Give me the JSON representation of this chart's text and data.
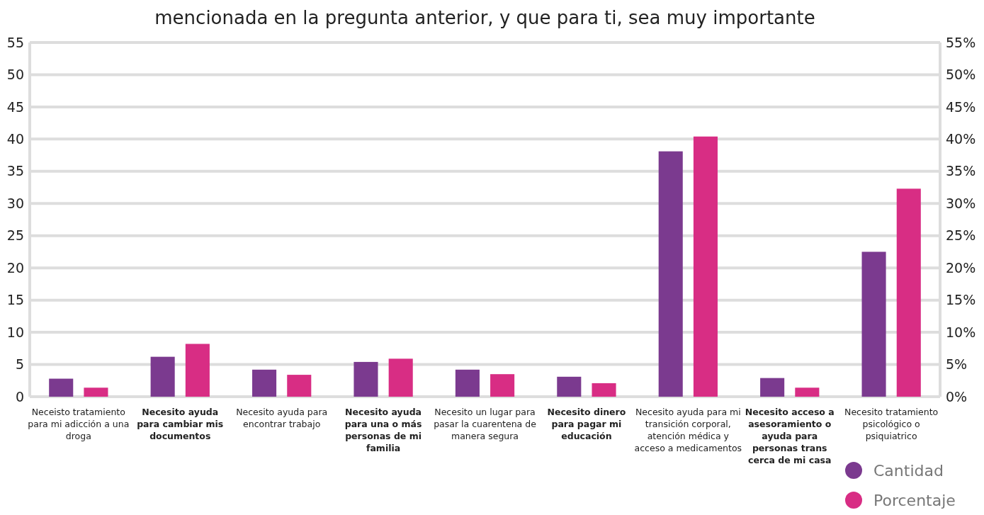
{
  "chart_data": {
    "type": "bar",
    "title": "mencionada en la pregunta anterior, y que para ti, sea muy importante",
    "categories": [
      "Neceisto tratamiento para mi adicción a una droga",
      "Necesito ayuda para cambiar mis documentos",
      "Necesito ayuda para encontrar trabajo",
      "Necesito ayuda para una o más personas de mi familia",
      "Necesito un lugar para pasar la cuarentena de manera segura",
      "Necesito dinero para pagar mi educación",
      "Necesito ayuda para mi transición corporal, atención médica y acceso a medicamentos",
      "Necesito acceso a asesoramiento o ayuda para personas trans cerca de mi casa",
      "Necesito tratamiento psicológico o psiquiatrico"
    ],
    "series": [
      {
        "name": "Cantidad",
        "color": "#7b3a8f",
        "values": [
          2.8,
          6.2,
          4.2,
          5.4,
          4.2,
          3.1,
          38.1,
          2.9,
          22.5
        ]
      },
      {
        "name": "Porcentaje",
        "color": "#d82d84",
        "axis": "y2",
        "values": [
          1.4,
          8.2,
          3.4,
          5.9,
          3.5,
          2.1,
          40.4,
          1.4,
          32.3
        ]
      }
    ],
    "ylim": [
      0,
      55
    ],
    "yticks": [
      0,
      5,
      10,
      15,
      20,
      25,
      30,
      35,
      40,
      45,
      50,
      55
    ],
    "y2lim": [
      0,
      55
    ],
    "y2ticks": [
      {
        "value": 0,
        "label": "0%"
      },
      {
        "value": 5,
        "label": "5%"
      },
      {
        "value": 10,
        "label": "10%"
      },
      {
        "value": 15,
        "label": "15%"
      },
      {
        "value": 20,
        "label": "20%"
      },
      {
        "value": 25,
        "label": "25%"
      },
      {
        "value": 30,
        "label": "30%"
      },
      {
        "value": 35,
        "label": "35%"
      },
      {
        "value": 40,
        "label": "40%"
      },
      {
        "value": 45,
        "label": "45%"
      },
      {
        "value": 50,
        "label": "50%"
      },
      {
        "value": 55,
        "label": "55%"
      }
    ],
    "grid": true,
    "legend": "bottom right"
  }
}
